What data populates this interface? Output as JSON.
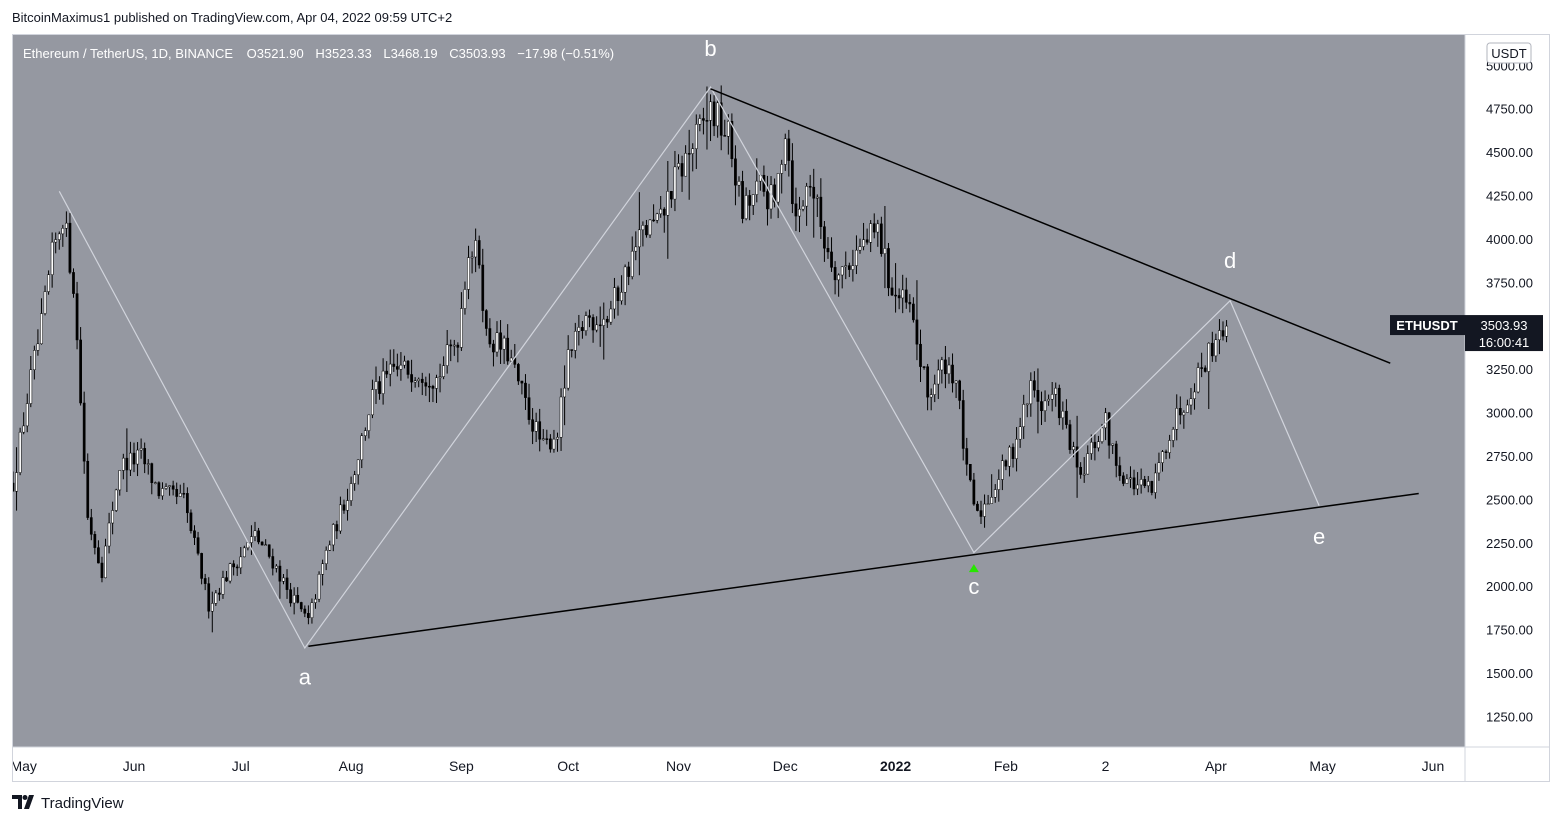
{
  "header": {
    "publisher": "BitcoinMaximus1 published on TradingView.com, Apr 04, 2022 09:59 UTC+2"
  },
  "footer": {
    "brand": "TradingView"
  },
  "icons": {
    "logo": "tradingview-logo-icon"
  },
  "colors": {
    "plot_bg": "#9598a1",
    "candle": "#ffffff",
    "trendline": "#000000",
    "wave": "#d1d4dc",
    "marker": "#26e600"
  },
  "chart_data": {
    "type": "candlestick",
    "symbol_line": {
      "name": "Ethereum / TetherUS, 1D, BINANCE",
      "open": "O3521.90",
      "high": "H3523.33",
      "low": "L3468.19",
      "close": "C3503.93",
      "change": "−17.98 (−0.51%)"
    },
    "currency": "USDT",
    "ticker": "ETHUSDT",
    "last_price": "3503.93",
    "countdown": "16:00:41",
    "y_range": [
      1080,
      5180
    ],
    "y_ticks": [
      "5000.00",
      "4750.00",
      "4500.00",
      "4250.00",
      "4000.00",
      "3750.00",
      "3500.00",
      "3250.00",
      "3000.00",
      "2750.00",
      "2500.00",
      "2250.00",
      "2000.00",
      "1750.00",
      "1500.00",
      "1250.00"
    ],
    "x_range": [
      "2021-04-28",
      "2022-06-10"
    ],
    "x_ticks": [
      {
        "label": "May",
        "date": "2021-05-01",
        "bold": false
      },
      {
        "label": "Jun",
        "date": "2021-06-01",
        "bold": false
      },
      {
        "label": "Jul",
        "date": "2021-07-01",
        "bold": false
      },
      {
        "label": "Aug",
        "date": "2021-08-01",
        "bold": false
      },
      {
        "label": "Sep",
        "date": "2021-09-01",
        "bold": false
      },
      {
        "label": "Oct",
        "date": "2021-10-01",
        "bold": false
      },
      {
        "label": "Nov",
        "date": "2021-11-01",
        "bold": false
      },
      {
        "label": "Dec",
        "date": "2021-12-01",
        "bold": false
      },
      {
        "label": "2022",
        "date": "2022-01-01",
        "bold": true
      },
      {
        "label": "Feb",
        "date": "2022-02-01",
        "bold": false
      },
      {
        "label": "2",
        "date": "2022-03-01",
        "bold": false
      },
      {
        "label": "Apr",
        "date": "2022-04-01",
        "bold": false
      },
      {
        "label": "May",
        "date": "2022-05-01",
        "bold": false
      },
      {
        "label": "Jun",
        "date": "2022-06-01",
        "bold": false
      }
    ],
    "price_path": [
      [
        "2021-04-28",
        2600
      ],
      [
        "2021-05-03",
        3200
      ],
      [
        "2021-05-06",
        3500
      ],
      [
        "2021-05-09",
        3900
      ],
      [
        "2021-05-12",
        4150
      ],
      [
        "2021-05-15",
        3750
      ],
      [
        "2021-05-19",
        2400
      ],
      [
        "2021-05-23",
        2100
      ],
      [
        "2021-05-28",
        2700
      ],
      [
        "2021-06-03",
        2750
      ],
      [
        "2021-06-08",
        2550
      ],
      [
        "2021-06-15",
        2500
      ],
      [
        "2021-06-22",
        1900
      ],
      [
        "2021-06-28",
        2100
      ],
      [
        "2021-07-05",
        2300
      ],
      [
        "2021-07-10",
        2150
      ],
      [
        "2021-07-15",
        1950
      ],
      [
        "2021-07-20",
        1800
      ],
      [
        "2021-07-25",
        2200
      ],
      [
        "2021-08-01",
        2600
      ],
      [
        "2021-08-07",
        3100
      ],
      [
        "2021-08-13",
        3250
      ],
      [
        "2021-08-20",
        3250
      ],
      [
        "2021-08-25",
        3200
      ],
      [
        "2021-08-31",
        3450
      ],
      [
        "2021-09-03",
        3950
      ],
      [
        "2021-09-06",
        3900
      ],
      [
        "2021-09-08",
        3450
      ],
      [
        "2021-09-14",
        3350
      ],
      [
        "2021-09-20",
        3000
      ],
      [
        "2021-09-24",
        2800
      ],
      [
        "2021-09-28",
        2900
      ],
      [
        "2021-10-01",
        3300
      ],
      [
        "2021-10-06",
        3550
      ],
      [
        "2021-10-12",
        3550
      ],
      [
        "2021-10-18",
        3850
      ],
      [
        "2021-10-22",
        4050
      ],
      [
        "2021-10-27",
        4100
      ],
      [
        "2021-10-30",
        4300
      ],
      [
        "2021-11-04",
        4500
      ],
      [
        "2021-11-10",
        4750
      ],
      [
        "2021-11-15",
        4600
      ],
      [
        "2021-11-19",
        4150
      ],
      [
        "2021-11-24",
        4300
      ],
      [
        "2021-11-28",
        4200
      ],
      [
        "2021-12-01",
        4650
      ],
      [
        "2021-12-04",
        4100
      ],
      [
        "2021-12-08",
        4350
      ],
      [
        "2021-12-12",
        4000
      ],
      [
        "2021-12-16",
        3800
      ],
      [
        "2021-12-22",
        3950
      ],
      [
        "2021-12-27",
        4050
      ],
      [
        "2021-12-31",
        3700
      ],
      [
        "2022-01-05",
        3600
      ],
      [
        "2022-01-10",
        3100
      ],
      [
        "2022-01-15",
        3300
      ],
      [
        "2022-01-18",
        3200
      ],
      [
        "2022-01-21",
        2650
      ],
      [
        "2022-01-24",
        2400
      ],
      [
        "2022-01-28",
        2550
      ],
      [
        "2022-02-03",
        2800
      ],
      [
        "2022-02-08",
        3150
      ],
      [
        "2022-02-11",
        3050
      ],
      [
        "2022-02-15",
        3100
      ],
      [
        "2022-02-18",
        2900
      ],
      [
        "2022-02-22",
        2600
      ],
      [
        "2022-02-24",
        2750
      ],
      [
        "2022-03-01",
        2950
      ],
      [
        "2022-03-04",
        2700
      ],
      [
        "2022-03-08",
        2600
      ],
      [
        "2022-03-14",
        2550
      ],
      [
        "2022-03-19",
        2900
      ],
      [
        "2022-03-25",
        3150
      ],
      [
        "2022-03-30",
        3350
      ],
      [
        "2022-04-02",
        3500
      ],
      [
        "2022-04-04",
        3503.93
      ]
    ],
    "trendlines": [
      {
        "from": [
          "2021-11-10",
          4870
        ],
        "to": [
          "2022-05-20",
          3290
        ]
      },
      {
        "from": [
          "2021-07-20",
          1660
        ],
        "to": [
          "2022-05-28",
          2540
        ]
      }
    ],
    "wave_path": [
      [
        "2021-05-11",
        4280
      ],
      [
        "2021-07-19",
        1650
      ],
      [
        "2021-11-10",
        4880
      ],
      [
        "2022-01-23",
        2200
      ],
      [
        "2022-04-05",
        3650
      ],
      [
        "2022-04-30",
        2470
      ]
    ],
    "wave_labels": [
      {
        "label": "a",
        "date": "2021-07-19",
        "price": 1480
      },
      {
        "label": "b",
        "date": "2021-11-10",
        "price": 5100
      },
      {
        "label": "c",
        "date": "2022-01-23",
        "price": 2000
      },
      {
        "label": "d",
        "date": "2022-04-05",
        "price": 3880
      },
      {
        "label": "e",
        "date": "2022-04-30",
        "price": 2290
      }
    ],
    "marker": {
      "date": "2022-01-23",
      "price": 2110
    },
    "grid": false
  }
}
